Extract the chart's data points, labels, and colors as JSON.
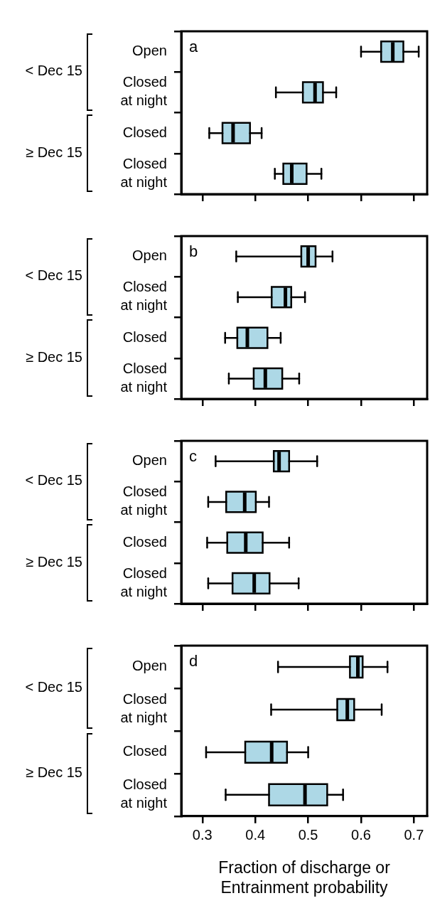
{
  "chart_data": [
    {
      "type": "box",
      "orientation": "horizontal",
      "categories": [
        "Open",
        "Closed\nat night",
        "Closed",
        "Closed\nat night"
      ],
      "series": [
        {
          "color": "#add8e6",
          "boxes": [
            {
              "low": 0.6,
              "q1": 0.638,
              "median": 0.66,
              "q3": 0.68,
              "high": 0.709
            },
            {
              "low": 0.439,
              "q1": 0.49,
              "median": 0.513,
              "q3": 0.528,
              "high": 0.553
            },
            {
              "low": 0.313,
              "q1": 0.338,
              "median": 0.358,
              "q3": 0.39,
              "high": 0.412
            },
            {
              "low": 0.437,
              "q1": 0.453,
              "median": 0.469,
              "q3": 0.497,
              "high": 0.525
            }
          ]
        }
      ],
      "xlim": [
        0.26,
        0.725
      ],
      "xticks": [
        0.3,
        0.4,
        0.5,
        0.6,
        0.7
      ],
      "tick_labels": "y",
      "annotations": [
        "a",
        "< Dec 15",
        "≥ Dec 15"
      ]
    },
    {
      "type": "box",
      "orientation": "horizontal",
      "categories": [
        "Open",
        "Closed\nat night",
        "Closed",
        "Closed\nat night"
      ],
      "series": [
        {
          "color": "#add8e6",
          "boxes": [
            {
              "low": 0.364,
              "q1": 0.487,
              "median": 0.5,
              "q3": 0.514,
              "high": 0.546
            },
            {
              "low": 0.367,
              "q1": 0.431,
              "median": 0.457,
              "q3": 0.468,
              "high": 0.494
            },
            {
              "low": 0.343,
              "q1": 0.366,
              "median": 0.385,
              "q3": 0.423,
              "high": 0.448
            },
            {
              "low": 0.35,
              "q1": 0.397,
              "median": 0.419,
              "q3": 0.451,
              "high": 0.483
            }
          ]
        }
      ],
      "xlim": [
        0.26,
        0.725
      ],
      "xticks": [
        0.3,
        0.4,
        0.5,
        0.6,
        0.7
      ],
      "tick_labels": "y",
      "annotations": [
        "b",
        "< Dec 15",
        "≥ Dec 15"
      ]
    },
    {
      "type": "box",
      "orientation": "horizontal",
      "categories": [
        "Open",
        "Closed\nat night",
        "Closed",
        "Closed\nat night"
      ],
      "series": [
        {
          "color": "#add8e6",
          "boxes": [
            {
              "low": 0.325,
              "q1": 0.435,
              "median": 0.445,
              "q3": 0.464,
              "high": 0.517
            },
            {
              "low": 0.311,
              "q1": 0.345,
              "median": 0.38,
              "q3": 0.401,
              "high": 0.426
            },
            {
              "low": 0.309,
              "q1": 0.347,
              "median": 0.382,
              "q3": 0.414,
              "high": 0.464
            },
            {
              "low": 0.311,
              "q1": 0.357,
              "median": 0.398,
              "q3": 0.427,
              "high": 0.482
            }
          ]
        }
      ],
      "xlim": [
        0.26,
        0.725
      ],
      "xticks": [
        0.3,
        0.4,
        0.5,
        0.6,
        0.7
      ],
      "tick_labels": "y",
      "annotations": [
        "c",
        "< Dec 15",
        "≥ Dec 15"
      ]
    },
    {
      "type": "box",
      "orientation": "horizontal",
      "categories": [
        "Open",
        "Closed\nat night",
        "Closed",
        "Closed\nat night"
      ],
      "series": [
        {
          "color": "#add8e6",
          "boxes": [
            {
              "low": 0.443,
              "q1": 0.579,
              "median": 0.594,
              "q3": 0.603,
              "high": 0.65
            },
            {
              "low": 0.43,
              "q1": 0.555,
              "median": 0.574,
              "q3": 0.587,
              "high": 0.639
            },
            {
              "low": 0.307,
              "q1": 0.381,
              "median": 0.431,
              "q3": 0.46,
              "high": 0.5
            },
            {
              "low": 0.344,
              "q1": 0.426,
              "median": 0.494,
              "q3": 0.536,
              "high": 0.566
            }
          ]
        }
      ],
      "xlim": [
        0.26,
        0.725
      ],
      "xticks": [
        0.3,
        0.4,
        0.5,
        0.6,
        0.7
      ],
      "xlabel": "Fraction of discharge or\nEntrainment probability",
      "annotations": [
        "d",
        "< Dec 15",
        "≥ Dec 15"
      ]
    }
  ]
}
